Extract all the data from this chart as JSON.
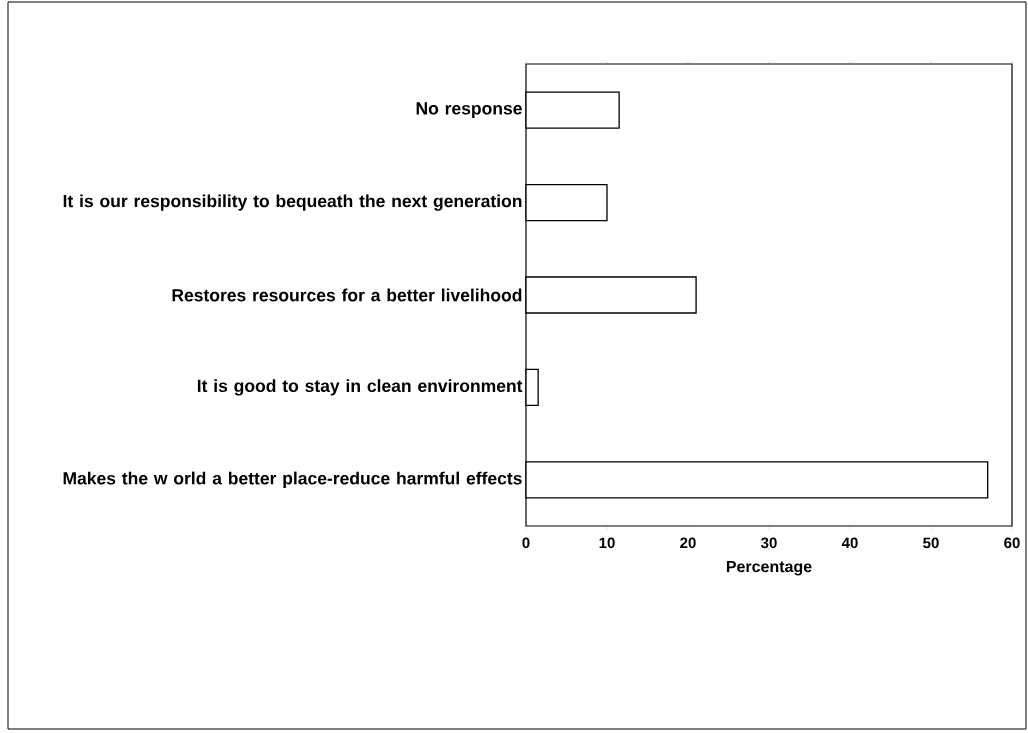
{
  "chart_data": {
    "type": "bar",
    "orientation": "horizontal",
    "categories": [
      "No response",
      "It is our responsibility to bequeath the next generation",
      "Restores resources for a better livelihood",
      "It is good to stay in clean environment",
      "Makes the w orld a better place-reduce harmful effects"
    ],
    "values": [
      11.5,
      10,
      21,
      1.5,
      57
    ],
    "color": "#ffffff",
    "xlabel": "Percentage",
    "xlim": [
      0,
      60
    ],
    "xticks": [
      0,
      10,
      20,
      30,
      40,
      50,
      60
    ],
    "grid": false
  }
}
